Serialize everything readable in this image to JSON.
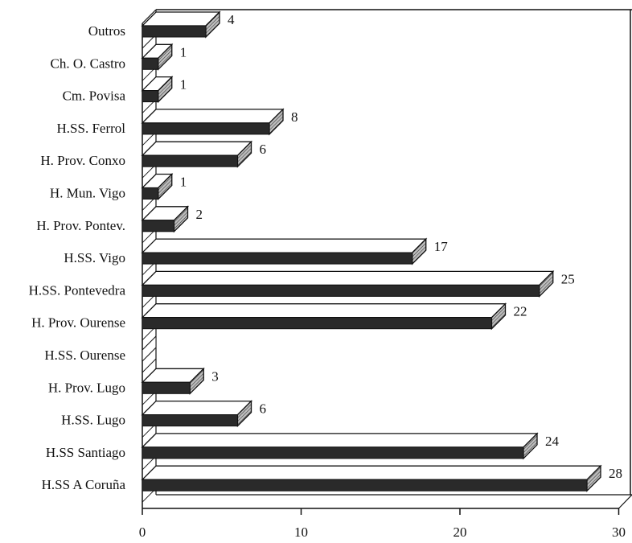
{
  "chart_data": {
    "type": "bar",
    "orientation": "horizontal",
    "style": "3d",
    "categories": [
      "H.SS A Coruña",
      "H.SS Santiago",
      "H.SS. Lugo",
      "H. Prov. Lugo",
      "H.SS. Ourense",
      "H. Prov. Ourense",
      "H.SS. Pontevedra",
      "H.SS. Vigo",
      "H. Prov. Pontev.",
      "H. Mun. Vigo",
      "H. Prov. Conxo",
      "H.SS. Ferrol",
      "Cm. Povisa",
      "Ch. O. Castro",
      "Outros"
    ],
    "values": [
      28,
      24,
      6,
      3,
      0,
      22,
      25,
      17,
      2,
      1,
      6,
      8,
      1,
      1,
      4
    ],
    "value_labels": [
      "28",
      "24",
      "6",
      "3",
      "",
      "22",
      "25",
      "17",
      "2",
      "1",
      "6",
      "8",
      "1",
      "1",
      "4"
    ],
    "xlim": [
      0,
      30
    ],
    "x_ticks": [
      0,
      10,
      20,
      30
    ],
    "x_tick_labels": [
      "0",
      "10",
      "20",
      "30"
    ],
    "title": "",
    "xlabel": "",
    "ylabel": "",
    "grid": false,
    "legend": "none",
    "colors": {
      "bar_front": "#2a2a2a",
      "bar_top": "#ffffff",
      "bar_side": "#9a9a9a",
      "axis": "#111111",
      "background": "#ffffff"
    }
  }
}
